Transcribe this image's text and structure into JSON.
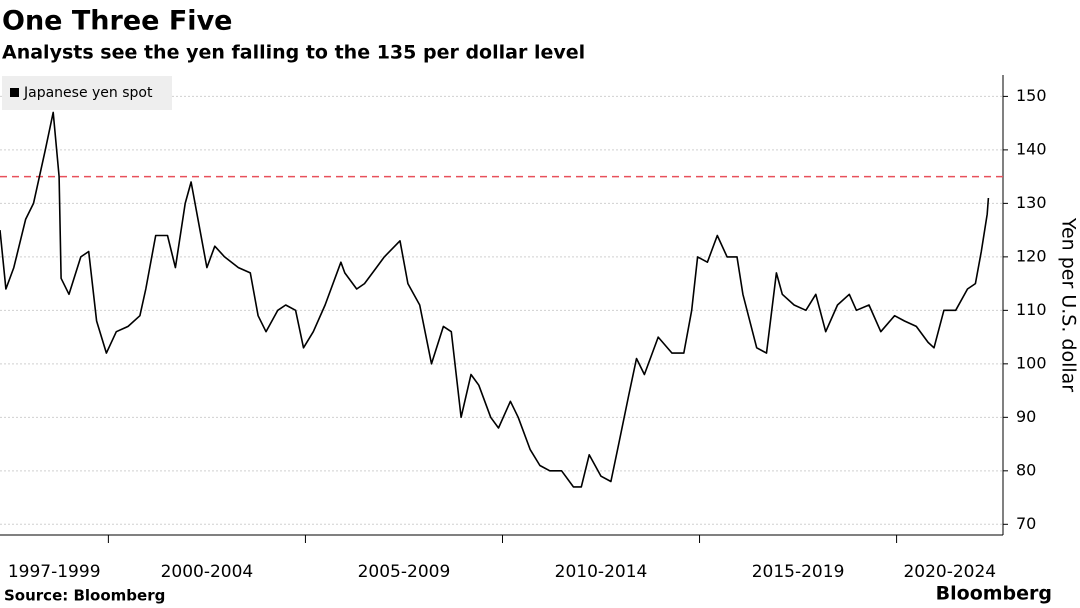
{
  "chart_data": {
    "type": "line",
    "title": "One Three Five",
    "subtitle": "Analysts see the yen falling to the 135 per dollar level",
    "y_axis_label": "Yen per U.S. dollar",
    "source": "Source: Bloomberg",
    "brand": "Bloomberg",
    "legend_position": "top-left",
    "grid": true,
    "xlim": [
      1997.25,
      2022.7
    ],
    "ylim": [
      68,
      154
    ],
    "yticks": [
      70,
      80,
      90,
      100,
      110,
      120,
      130,
      140,
      150
    ],
    "x_period_edges": [
      2000,
      2005,
      2010,
      2015,
      2020
    ],
    "x_period_labels": [
      "1997-1999",
      "2000-2004",
      "2005-2009",
      "2010-2014",
      "2015-2019",
      "2020-2024"
    ],
    "reference_line": {
      "value": 135,
      "color": "#e8505b"
    },
    "x": [
      1997.25,
      1997.4,
      1997.6,
      1997.9,
      1998.1,
      1998.4,
      1998.6,
      1998.75,
      1998.8,
      1999.0,
      1999.3,
      1999.5,
      1999.7,
      1999.95,
      2000.2,
      2000.5,
      2000.8,
      2000.95,
      2001.2,
      2001.5,
      2001.7,
      2001.95,
      2002.1,
      2002.3,
      2002.5,
      2002.7,
      2002.95,
      2003.3,
      2003.6,
      2003.8,
      2004.0,
      2004.3,
      2004.5,
      2004.75,
      2004.95,
      2005.2,
      2005.5,
      2005.9,
      2006.0,
      2006.3,
      2006.5,
      2006.8,
      2007.0,
      2007.4,
      2007.6,
      2007.9,
      2008.2,
      2008.5,
      2008.7,
      2008.95,
      2009.2,
      2009.4,
      2009.7,
      2009.9,
      2010.2,
      2010.4,
      2010.7,
      2010.95,
      2011.2,
      2011.5,
      2011.8,
      2012.0,
      2012.2,
      2012.5,
      2012.75,
      2012.95,
      2013.2,
      2013.4,
      2013.6,
      2013.95,
      2014.3,
      2014.6,
      2014.8,
      2014.95,
      2015.2,
      2015.45,
      2015.7,
      2015.95,
      2016.1,
      2016.45,
      2016.7,
      2016.95,
      2017.1,
      2017.4,
      2017.7,
      2017.95,
      2018.2,
      2018.5,
      2018.8,
      2018.98,
      2019.3,
      2019.6,
      2019.95,
      2020.2,
      2020.5,
      2020.8,
      2020.95,
      2021.2,
      2021.5,
      2021.8,
      2022.0,
      2022.15,
      2022.3,
      2022.33
    ],
    "series": [
      {
        "name": "Japanese yen spot",
        "color": "#000000",
        "values": [
          125,
          114,
          118,
          127,
          130,
          140,
          147,
          135,
          116,
          113,
          120,
          121,
          108,
          102,
          106,
          107,
          109,
          114,
          124,
          124,
          118,
          130,
          134,
          126,
          118,
          122,
          120,
          118,
          117,
          109,
          106,
          110,
          111,
          110,
          103,
          106,
          111,
          119,
          117,
          114,
          115,
          118,
          120,
          123,
          115,
          111,
          100,
          107,
          106,
          90,
          98,
          96,
          90,
          88,
          93,
          90,
          84,
          81,
          80,
          80,
          77,
          77,
          83,
          79,
          78,
          85,
          94,
          101,
          98,
          105,
          102,
          102,
          110,
          120,
          119,
          124,
          120,
          120,
          113,
          103,
          102,
          117,
          113,
          111,
          110,
          113,
          106,
          111,
          113,
          110,
          111,
          106,
          109,
          108,
          107,
          104,
          103,
          110,
          110,
          114,
          115,
          121,
          128,
          131
        ]
      }
    ]
  }
}
